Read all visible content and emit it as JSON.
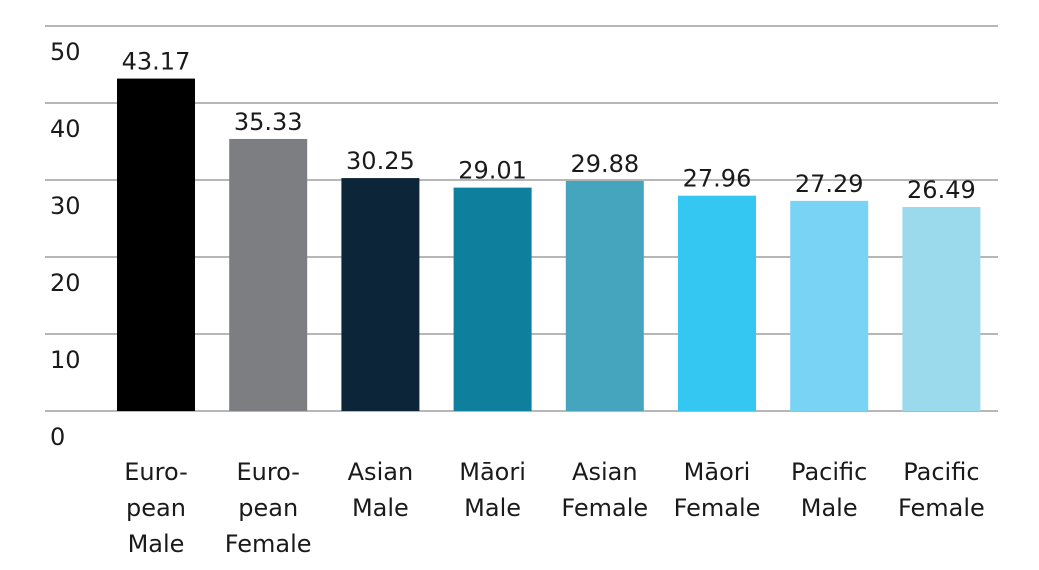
{
  "chart_data": {
    "type": "bar",
    "title": "",
    "xlabel": "",
    "ylabel": "",
    "ylim": [
      0,
      50
    ],
    "yticks": [
      0,
      10,
      20,
      30,
      40,
      50
    ],
    "grid": true,
    "legend": "none",
    "categories": [
      [
        "Euro-",
        "pean",
        "Male"
      ],
      [
        "Euro-",
        "pean",
        "Female"
      ],
      [
        "Asian",
        "Male"
      ],
      [
        "Māori",
        "Male"
      ],
      [
        "Asian",
        "Female"
      ],
      [
        "Māori",
        "Female"
      ],
      [
        "Pacific",
        "Male"
      ],
      [
        "Pacific",
        "Female"
      ]
    ],
    "values": [
      43.17,
      35.33,
      30.25,
      29.01,
      29.88,
      27.96,
      27.29,
      26.49
    ],
    "value_labels": [
      "43.17",
      "35.33",
      "30.25",
      "29.01",
      "29.88",
      "27.96",
      "27.29",
      "26.49"
    ],
    "colors": [
      "#000000",
      "#7d7e81",
      "#0d2538",
      "#0e809e",
      "#45a5bf",
      "#34c7f2",
      "#79d3f5",
      "#9bdaec"
    ]
  }
}
